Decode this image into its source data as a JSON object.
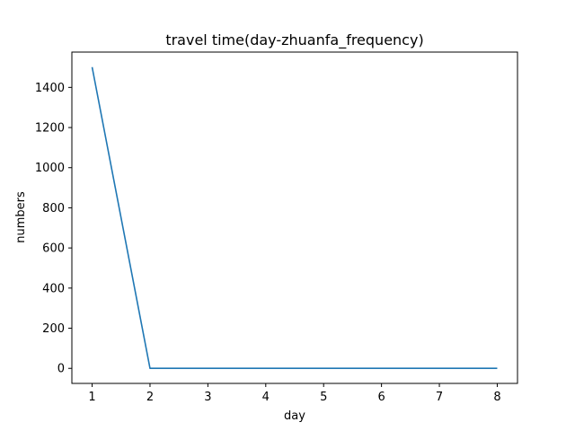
{
  "chart_data": {
    "type": "line",
    "title": "travel time(day-zhuanfa_frequency)",
    "xlabel": "day",
    "ylabel": "numbers",
    "x": [
      1,
      2,
      3,
      4,
      5,
      6,
      7,
      8
    ],
    "series": [
      {
        "values": [
          1501,
          0,
          0,
          0,
          0,
          0,
          0,
          0
        ],
        "color": "#1f77b4"
      }
    ],
    "xticks": [
      1,
      2,
      3,
      4,
      5,
      6,
      7,
      8
    ],
    "yticks": [
      0,
      200,
      400,
      600,
      800,
      1000,
      1200,
      1400
    ],
    "xlim": [
      0.65,
      8.35
    ],
    "ylim": [
      -75,
      1576
    ],
    "grid": false
  }
}
